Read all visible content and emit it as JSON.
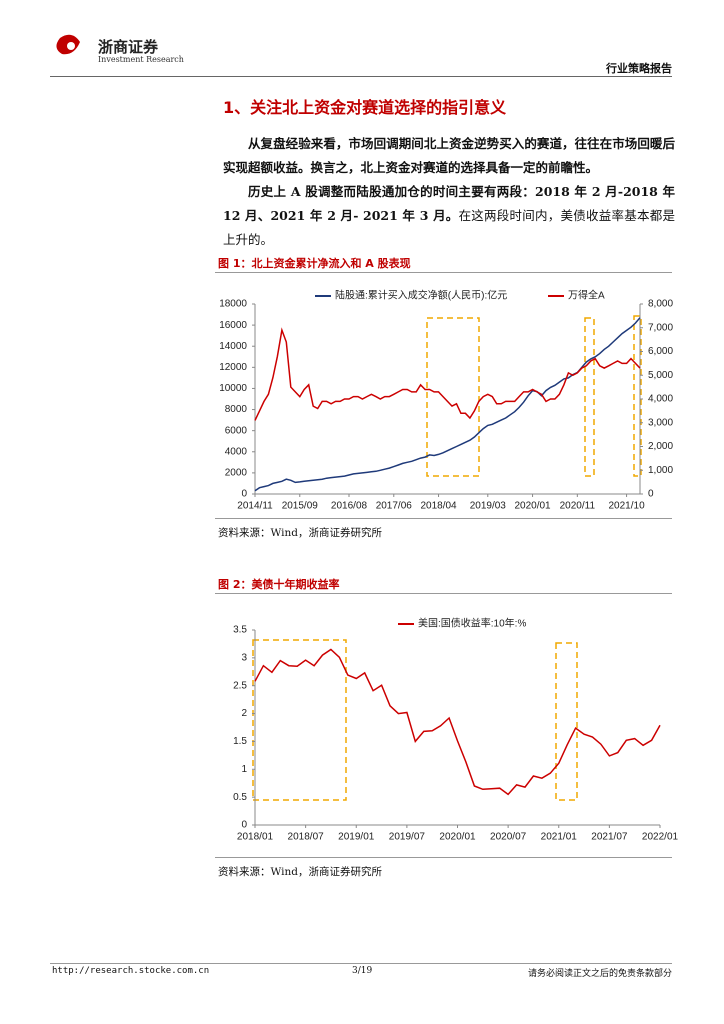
{
  "header": {
    "logo_name": "浙商证券",
    "logo_sub": "Investment Research",
    "report_type": "行业策略报告"
  },
  "section": {
    "title": "1、关注北上资金对赛道选择的指引意义",
    "paragraphs": [
      {
        "bold": "从复盘经验来看，市场回调期间北上资金逆势买入的赛道，往往在市场回暖后实现超额收益。换言之，北上资金对赛道的选择具备一定的前瞻性。"
      },
      {
        "bold": "历史上 A 股调整而陆股通加仓的时间主要有两段：2018 年 2 月-2018 年 12 月、2021 年 2 月- 2021 年 3 月。",
        "normal": "在这两段时间内，美债收益率基本都是上升的。"
      }
    ]
  },
  "figures": [
    {
      "caption": "图 1：北上资金累计净流入和 A 股表现",
      "source": "资料来源：Wind，浙商证券研究所"
    },
    {
      "caption": "图 2：美债十年期收益率",
      "source": "资料来源：Wind，浙商证券研究所"
    }
  ],
  "chart_data": [
    {
      "type": "line",
      "categories": [
        "2014/11",
        null,
        null,
        null,
        null,
        null,
        null,
        null,
        null,
        null,
        "2015/09",
        null,
        null,
        null,
        null,
        null,
        null,
        null,
        null,
        null,
        null,
        "2016/08",
        null,
        null,
        null,
        null,
        null,
        null,
        null,
        null,
        null,
        "2017/06",
        null,
        null,
        null,
        null,
        null,
        null,
        null,
        null,
        null,
        "2018/04",
        null,
        null,
        null,
        null,
        null,
        null,
        null,
        null,
        null,
        null,
        "2019/03",
        null,
        null,
        null,
        null,
        null,
        null,
        null,
        null,
        null,
        "2020/01",
        null,
        null,
        null,
        null,
        null,
        null,
        null,
        null,
        null,
        "2020/11",
        null,
        null,
        null,
        null,
        null,
        null,
        null,
        null,
        null,
        null,
        "2021/10",
        null,
        null,
        null
      ],
      "series": [
        {
          "name": "陆股通:累计买入成交净额(人民币):亿元",
          "color": "#1f3a7a",
          "axis": "y",
          "values": [
            300,
            600,
            700,
            800,
            1000,
            1100,
            1200,
            1400,
            1300,
            1100,
            1150,
            1200,
            1250,
            1300,
            1350,
            1400,
            1500,
            1550,
            1600,
            1650,
            1700,
            1800,
            1900,
            1950,
            2000,
            2050,
            2100,
            2150,
            2250,
            2350,
            2450,
            2600,
            2750,
            2900,
            3000,
            3100,
            3250,
            3400,
            3500,
            3700,
            3650,
            3750,
            3900,
            4100,
            4300,
            4500,
            4700,
            4900,
            5100,
            5400,
            5800,
            6200,
            6500,
            6600,
            6800,
            7000,
            7200,
            7500,
            7800,
            8200,
            8700,
            9300,
            9800,
            9700,
            9300,
            9800,
            10100,
            10300,
            10600,
            10900,
            11000,
            11300,
            11500,
            12000,
            12500,
            12800,
            13000,
            13300,
            13700,
            14000,
            14400,
            14800,
            15200,
            15500,
            15800,
            16200,
            16700
          ]
        },
        {
          "name": "万得全A",
          "color": "#cc0000",
          "axis": "y2",
          "values": [
            3100,
            3500,
            3900,
            4200,
            4900,
            5800,
            6900,
            6400,
            4500,
            4300,
            4100,
            4400,
            4600,
            3700,
            3600,
            3900,
            3900,
            3800,
            3900,
            3900,
            4000,
            4000,
            4100,
            4100,
            4000,
            4100,
            4200,
            4100,
            4000,
            4100,
            4100,
            4200,
            4300,
            4400,
            4400,
            4300,
            4300,
            4600,
            4400,
            4400,
            4300,
            4300,
            4100,
            3900,
            3700,
            3800,
            3400,
            3400,
            3200,
            3500,
            3900,
            4100,
            4200,
            4100,
            3800,
            3800,
            3900,
            3900,
            3900,
            4100,
            4300,
            4300,
            4400,
            4300,
            4200,
            3900,
            4000,
            4000,
            4200,
            4600,
            5100,
            5000,
            5100,
            5300,
            5400,
            5600,
            5700,
            5400,
            5300,
            5400,
            5500,
            5600,
            5500,
            5500,
            5700,
            5500,
            5300
          ]
        }
      ],
      "ylim": [
        0,
        18000
      ],
      "yticks": [
        0,
        2000,
        4000,
        6000,
        8000,
        10000,
        12000,
        14000,
        16000,
        18000
      ],
      "y2lim": [
        0,
        8000
      ],
      "y2ticks": [
        {
          "value": 0,
          "label": "0"
        },
        {
          "value": 1000,
          "label": "1,000"
        },
        {
          "value": 2000,
          "label": "2,000"
        },
        {
          "value": 3000,
          "label": "3,000"
        },
        {
          "value": 4000,
          "label": "4,000"
        },
        {
          "value": 5000,
          "label": "5,000"
        },
        {
          "value": 6000,
          "label": "6,000"
        },
        {
          "value": 7000,
          "label": "7,000"
        },
        {
          "value": 8000,
          "label": "8,000"
        }
      ],
      "grid": false
    },
    {
      "type": "line",
      "categories": [
        "2018/01",
        null,
        null,
        null,
        null,
        null,
        "2018/07",
        null,
        null,
        null,
        null,
        null,
        "2019/01",
        null,
        null,
        null,
        null,
        null,
        "2019/07",
        null,
        null,
        null,
        null,
        null,
        "2020/01",
        null,
        null,
        null,
        null,
        null,
        "2020/07",
        null,
        null,
        null,
        null,
        null,
        "2021/01",
        null,
        null,
        null,
        null,
        null,
        "2021/07",
        null,
        null,
        null,
        null,
        null,
        "2022/01"
      ],
      "series": [
        {
          "name": "美国:国债收益率:10年:%",
          "color": "#cc0000",
          "axis": "y",
          "values": [
            2.58,
            2.86,
            2.74,
            2.95,
            2.86,
            2.85,
            2.96,
            2.86,
            3.05,
            3.15,
            3.01,
            2.69,
            2.63,
            2.73,
            2.41,
            2.51,
            2.14,
            2.0,
            2.02,
            1.5,
            1.68,
            1.69,
            1.78,
            1.92,
            1.51,
            1.13,
            0.7,
            0.64,
            0.65,
            0.66,
            0.55,
            0.72,
            0.68,
            0.88,
            0.84,
            0.93,
            1.11,
            1.44,
            1.74,
            1.63,
            1.58,
            1.45,
            1.24,
            1.3,
            1.52,
            1.55,
            1.43,
            1.52,
            1.79
          ]
        }
      ],
      "ylim": [
        0,
        3.5
      ],
      "yticks": [
        0,
        0.5,
        1,
        1.5,
        2,
        2.5,
        3,
        3.5
      ],
      "grid": false
    }
  ],
  "footer": {
    "url": "http://research.stocke.com.cn",
    "page": "3/19",
    "disclaimer": "请务必阅读正文之后的免责条款部分"
  }
}
